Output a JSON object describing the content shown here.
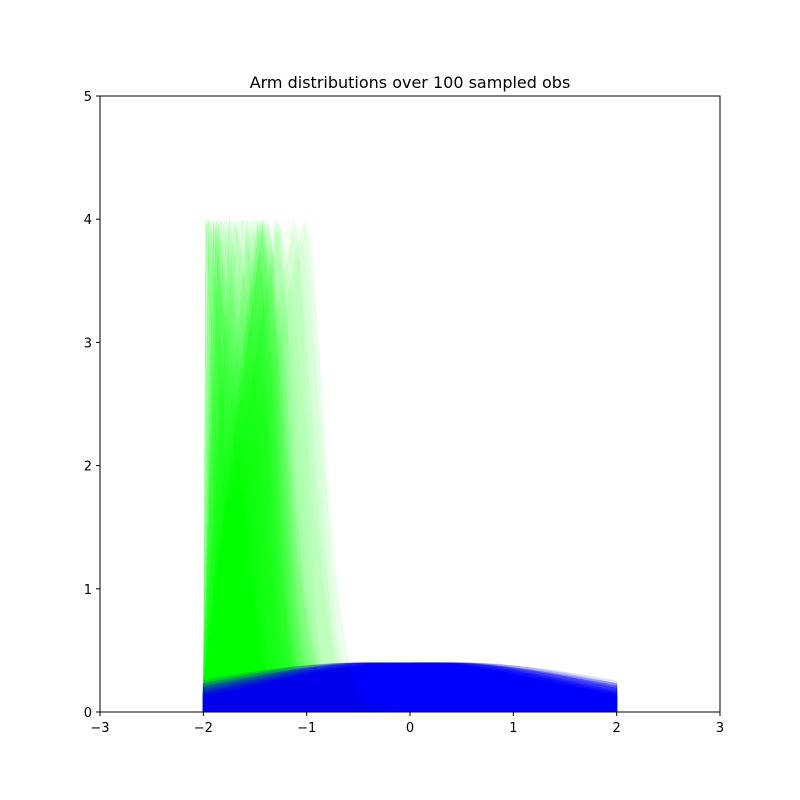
{
  "chart_data": {
    "type": "line",
    "title": "Arm distributions over 100 sampled obs",
    "xlabel": "",
    "ylabel": "",
    "xlim": [
      -3,
      3
    ],
    "ylim": [
      0,
      5
    ],
    "x_ticks": [
      -3,
      -2,
      -1,
      0,
      1,
      2,
      3
    ],
    "y_ticks": [
      0,
      1,
      2,
      3,
      4,
      5
    ],
    "x_tick_labels": [
      "−3",
      "−2",
      "−1",
      "0",
      "1",
      "2",
      "3"
    ],
    "y_tick_labels": [
      "0",
      "1",
      "2",
      "3",
      "4",
      "5"
    ],
    "grid": false,
    "legend": null,
    "support": [
      -2,
      2
    ],
    "num_curves_per_arm": 100,
    "series": [
      {
        "color": "#00ff00",
        "curve_family": "concentrated density",
        "peak_x_range": [
          -2.0,
          -1.0
        ],
        "peak_density_max": 4.0,
        "opacity": 0.04
      },
      {
        "color": "#0000ff",
        "curve_family": "normal density",
        "mean_range": [
          -0.5,
          0.5
        ],
        "std_range": [
          1.0,
          1.7
        ],
        "peak_density_max": 0.4,
        "opacity": 0.05
      }
    ]
  }
}
